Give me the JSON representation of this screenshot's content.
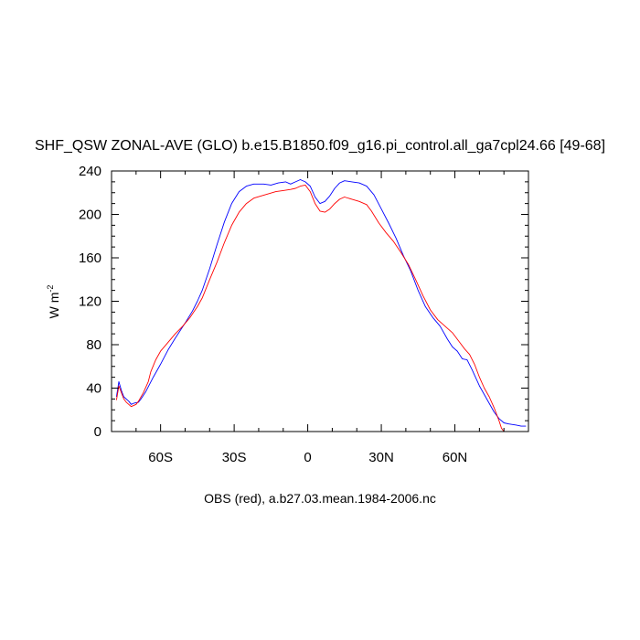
{
  "chart_data": {
    "type": "line",
    "title": "SHF_QSW ZONAL-AVE (GLO) b.e15.B1850.f09_g16.pi_control.all_ga7cpl24.66 [49-68]",
    "ylabel_main": "W m",
    "ylabel_sup": "-2",
    "caption": "OBS (red), a.b27.03.mean.1984-2006.nc",
    "xlim": [
      -80,
      90
    ],
    "ylim": [
      0,
      240
    ],
    "x_ticks": [
      {
        "value": -60,
        "label": "60S"
      },
      {
        "value": -30,
        "label": "30S"
      },
      {
        "value": 0,
        "label": "0"
      },
      {
        "value": 30,
        "label": "30N"
      },
      {
        "value": 60,
        "label": "60N"
      }
    ],
    "y_ticks": [
      {
        "value": 0,
        "label": "0"
      },
      {
        "value": 40,
        "label": "40"
      },
      {
        "value": 80,
        "label": "80"
      },
      {
        "value": 120,
        "label": "120"
      },
      {
        "value": 160,
        "label": "160"
      },
      {
        "value": 200,
        "label": "200"
      },
      {
        "value": 240,
        "label": "240"
      }
    ],
    "grid": false,
    "series": [
      {
        "color": "#0000ff",
        "points": [
          [
            -78,
            32
          ],
          [
            -77,
            46
          ],
          [
            -76,
            38
          ],
          [
            -75,
            32
          ],
          [
            -73,
            28
          ],
          [
            -72,
            25
          ],
          [
            -71,
            26
          ],
          [
            -69,
            27
          ],
          [
            -68,
            30
          ],
          [
            -66,
            37
          ],
          [
            -63,
            50
          ],
          [
            -60,
            62
          ],
          [
            -57,
            75
          ],
          [
            -54,
            86
          ],
          [
            -50,
            100
          ],
          [
            -47,
            111
          ],
          [
            -45,
            120
          ],
          [
            -43,
            130
          ],
          [
            -40,
            150
          ],
          [
            -37,
            172
          ],
          [
            -34,
            193
          ],
          [
            -31,
            210
          ],
          [
            -28,
            221
          ],
          [
            -25,
            226
          ],
          [
            -22,
            228
          ],
          [
            -18,
            228
          ],
          [
            -15,
            227
          ],
          [
            -12,
            229
          ],
          [
            -9,
            230
          ],
          [
            -7,
            228
          ],
          [
            -5,
            230
          ],
          [
            -3,
            232
          ],
          [
            -1,
            230
          ],
          [
            1,
            226
          ],
          [
            3,
            216
          ],
          [
            5,
            210
          ],
          [
            7,
            212
          ],
          [
            9,
            217
          ],
          [
            11,
            224
          ],
          [
            13,
            229
          ],
          [
            15,
            231
          ],
          [
            18,
            230
          ],
          [
            21,
            229
          ],
          [
            24,
            226
          ],
          [
            27,
            218
          ],
          [
            30,
            205
          ],
          [
            33,
            192
          ],
          [
            36,
            178
          ],
          [
            39,
            162
          ],
          [
            42,
            148
          ],
          [
            45,
            130
          ],
          [
            48,
            115
          ],
          [
            51,
            105
          ],
          [
            54,
            97
          ],
          [
            57,
            85
          ],
          [
            59,
            78
          ],
          [
            61,
            74
          ],
          [
            63,
            67
          ],
          [
            65,
            66
          ],
          [
            67,
            57
          ],
          [
            70,
            42
          ],
          [
            73,
            30
          ],
          [
            76,
            18
          ],
          [
            78,
            12
          ],
          [
            80,
            8
          ],
          [
            82,
            7
          ],
          [
            85,
            6
          ],
          [
            87,
            5
          ],
          [
            89,
            5
          ]
        ]
      },
      {
        "color": "#ff0000",
        "points": [
          [
            -78,
            29
          ],
          [
            -77,
            42
          ],
          [
            -76,
            36
          ],
          [
            -75,
            30
          ],
          [
            -74,
            27
          ],
          [
            -73,
            25
          ],
          [
            -72,
            23
          ],
          [
            -70,
            25
          ],
          [
            -69,
            28
          ],
          [
            -67,
            36
          ],
          [
            -65,
            46
          ],
          [
            -64,
            55
          ],
          [
            -62,
            66
          ],
          [
            -60,
            74
          ],
          [
            -57,
            82
          ],
          [
            -54,
            90
          ],
          [
            -51,
            97
          ],
          [
            -48,
            105
          ],
          [
            -45,
            115
          ],
          [
            -43,
            123
          ],
          [
            -40,
            140
          ],
          [
            -37,
            156
          ],
          [
            -34,
            174
          ],
          [
            -31,
            190
          ],
          [
            -28,
            202
          ],
          [
            -25,
            210
          ],
          [
            -22,
            215
          ],
          [
            -19,
            217
          ],
          [
            -16,
            219
          ],
          [
            -13,
            221
          ],
          [
            -10,
            222
          ],
          [
            -7,
            223
          ],
          [
            -5,
            224
          ],
          [
            -3,
            226
          ],
          [
            -1,
            227
          ],
          [
            1,
            221
          ],
          [
            3,
            210
          ],
          [
            5,
            203
          ],
          [
            7,
            202
          ],
          [
            9,
            205
          ],
          [
            11,
            210
          ],
          [
            13,
            214
          ],
          [
            15,
            216
          ],
          [
            18,
            214
          ],
          [
            21,
            212
          ],
          [
            24,
            209
          ],
          [
            26,
            203
          ],
          [
            29,
            192
          ],
          [
            32,
            183
          ],
          [
            35,
            175
          ],
          [
            38,
            165
          ],
          [
            41,
            154
          ],
          [
            44,
            140
          ],
          [
            47,
            125
          ],
          [
            50,
            112
          ],
          [
            53,
            103
          ],
          [
            56,
            97
          ],
          [
            59,
            91
          ],
          [
            62,
            82
          ],
          [
            64,
            76
          ],
          [
            66,
            71
          ],
          [
            68,
            62
          ],
          [
            70,
            50
          ],
          [
            72,
            40
          ],
          [
            74,
            32
          ],
          [
            76,
            22
          ],
          [
            78,
            10
          ],
          [
            79,
            3
          ],
          [
            80,
            0
          ],
          [
            85,
            0
          ],
          [
            89,
            0
          ]
        ]
      }
    ]
  }
}
